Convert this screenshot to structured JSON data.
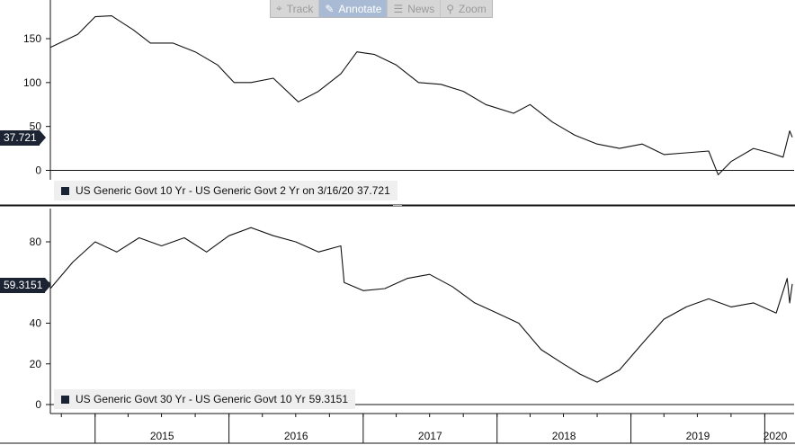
{
  "toolbar": {
    "items": [
      {
        "label": "Track",
        "icon": "crosshair-icon"
      },
      {
        "label": "Annotate",
        "icon": "pencil-icon"
      },
      {
        "label": "News",
        "icon": "news-icon"
      },
      {
        "label": "Zoom",
        "icon": "magnifier-icon"
      }
    ]
  },
  "panels": {
    "top": {
      "legend_text": "US Generic Govt 10 Yr - US Generic Govt 2 Yr on 3/16/20",
      "legend_value": "37.721",
      "last_value_label": "37.721"
    },
    "bottom": {
      "legend_text": "US Generic Govt 30 Yr - US Generic Govt 10 Yr",
      "legend_value": "59.3151",
      "last_value_label": "59.3151"
    }
  },
  "colors": {
    "line": "#111111",
    "background": "#ffffff",
    "legend_bg": "#efefef",
    "label_bg": "#1c2433",
    "toolbar_active": "#a9bbd4"
  },
  "chart_data": [
    {
      "type": "line",
      "series": [
        {
          "name": "US Generic Govt 10 Yr - US Generic Govt 2 Yr",
          "color": "#111111"
        }
      ],
      "ylim": [
        -5,
        185
      ],
      "yticks": [
        0,
        50,
        100,
        150
      ],
      "x_range": [
        "2014-09-01",
        "2020-03-16"
      ],
      "x": [
        "2014-09-01",
        "2014-11-15",
        "2015-01-01",
        "2015-02-15",
        "2015-04-15",
        "2015-06-01",
        "2015-08-01",
        "2015-10-01",
        "2015-12-01",
        "2016-01-15",
        "2016-03-01",
        "2016-05-01",
        "2016-07-08",
        "2016-09-01",
        "2016-11-01",
        "2016-12-15",
        "2017-02-01",
        "2017-04-01",
        "2017-06-01",
        "2017-08-01",
        "2017-10-01",
        "2017-12-01",
        "2018-02-15",
        "2018-04-01",
        "2018-06-01",
        "2018-08-01",
        "2018-10-01",
        "2018-12-01",
        "2019-02-01",
        "2019-04-01",
        "2019-06-01",
        "2019-08-01",
        "2019-08-27",
        "2019-10-01",
        "2019-12-01",
        "2020-01-15",
        "2020-02-20",
        "2020-03-09",
        "2020-03-16"
      ],
      "y": [
        140,
        155,
        175,
        176,
        160,
        145,
        145,
        135,
        120,
        100,
        100,
        105,
        78,
        90,
        110,
        135,
        132,
        120,
        100,
        98,
        90,
        75,
        65,
        75,
        55,
        40,
        30,
        25,
        30,
        18,
        20,
        22,
        -5,
        10,
        25,
        20,
        15,
        45,
        37.721
      ]
    },
    {
      "type": "line",
      "series": [
        {
          "name": "US Generic Govt 30 Yr - US Generic Govt 10 Yr",
          "color": "#111111"
        }
      ],
      "ylim": [
        -2,
        95
      ],
      "yticks": [
        0,
        20,
        40,
        60,
        80
      ],
      "x_range": [
        "2014-09-01",
        "2020-03-16"
      ],
      "x": [
        "2014-09-01",
        "2014-11-01",
        "2015-01-01",
        "2015-03-01",
        "2015-05-01",
        "2015-07-01",
        "2015-09-01",
        "2015-11-01",
        "2016-01-01",
        "2016-03-01",
        "2016-05-01",
        "2016-07-01",
        "2016-09-01",
        "2016-11-01",
        "2016-11-10",
        "2017-01-01",
        "2017-03-01",
        "2017-05-01",
        "2017-07-01",
        "2017-09-01",
        "2017-11-01",
        "2018-01-01",
        "2018-03-01",
        "2018-05-01",
        "2018-07-01",
        "2018-08-15",
        "2018-10-01",
        "2018-12-01",
        "2019-02-01",
        "2019-04-01",
        "2019-06-01",
        "2019-08-01",
        "2019-10-01",
        "2019-12-01",
        "2020-02-01",
        "2020-03-02",
        "2020-03-09",
        "2020-03-16"
      ],
      "x_labels": [
        "2015",
        "2016",
        "2017",
        "2018",
        "2019",
        "2020"
      ],
      "y": [
        57,
        70,
        80,
        75,
        82,
        78,
        82,
        75,
        83,
        87,
        83,
        80,
        75,
        78,
        60,
        56,
        57,
        62,
        64,
        58,
        50,
        45,
        40,
        27,
        20,
        15,
        11,
        17,
        30,
        42,
        48,
        52,
        48,
        50,
        45,
        62,
        50,
        59.3151
      ]
    }
  ]
}
